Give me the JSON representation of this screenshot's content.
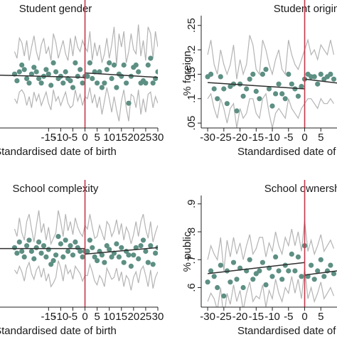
{
  "colors": {
    "dot": "#5d8f83",
    "band": "#b4b4b4",
    "fit": "#2f2f2f",
    "cutoff": "#c4374b"
  },
  "chart_data": [
    {
      "id": "gender",
      "type": "scatter",
      "title": "Student gender",
      "xlabel": "Standardised date of birth",
      "ylabel": "",
      "xlim": [
        -35,
        30
      ],
      "ylim": [
        0.3,
        0.8
      ],
      "x_ticks": [
        -15,
        -10,
        -5,
        0,
        5,
        10,
        15,
        20,
        25,
        30
      ],
      "x_tick_labels": [
        "-15",
        "-10",
        "-5",
        "0",
        "5",
        "10",
        "15",
        "20",
        "25",
        "30"
      ],
      "y_ticks": [],
      "y_tick_labels": [],
      "cutoff_x": 0,
      "x": [
        -29,
        -28,
        -27,
        -26,
        -25,
        -24,
        -23,
        -22,
        -21,
        -20,
        -19,
        -18,
        -17,
        -16,
        -15,
        -14,
        -13,
        -12,
        -11,
        -10,
        -9,
        -8,
        -7,
        -6,
        -5,
        -4,
        -3,
        -2,
        -1,
        0,
        1,
        2,
        3,
        4,
        5,
        6,
        7,
        8,
        9,
        10,
        11,
        12,
        13,
        14,
        15,
        16,
        17,
        18,
        19,
        20,
        21,
        22,
        23,
        24,
        25,
        26,
        27,
        28,
        29,
        30
      ],
      "values": [
        0.54,
        0.51,
        0.55,
        0.58,
        0.56,
        0.52,
        0.5,
        0.54,
        0.57,
        0.55,
        0.52,
        0.5,
        0.53,
        0.56,
        0.54,
        0.49,
        0.59,
        0.55,
        0.52,
        0.53,
        0.5,
        0.55,
        0.52,
        0.51,
        0.48,
        0.59,
        0.53,
        0.56,
        0.5,
        0.53,
        0.53,
        0.59,
        0.52,
        0.55,
        0.5,
        0.55,
        0.48,
        0.5,
        0.56,
        0.59,
        0.52,
        0.58,
        0.48,
        0.54,
        0.53,
        0.58,
        0.5,
        0.41,
        0.53,
        0.57,
        0.58,
        0.55,
        0.5,
        0.51,
        0.5,
        0.58,
        0.61,
        0.5,
        0.52,
        0.55
      ],
      "upper": [
        0.64,
        0.61,
        0.7,
        0.68,
        0.62,
        0.69,
        0.6,
        0.66,
        0.71,
        0.64,
        0.6,
        0.67,
        0.7,
        0.63,
        0.66,
        0.6,
        0.72,
        0.68,
        0.61,
        0.65,
        0.69,
        0.63,
        0.6,
        0.7,
        0.62,
        0.71,
        0.66,
        0.64,
        0.69,
        0.66,
        0.64,
        0.73,
        0.6,
        0.68,
        0.62,
        0.67,
        0.59,
        0.63,
        0.7,
        0.61,
        0.67,
        0.75,
        0.58,
        0.72,
        0.66,
        0.73,
        0.59,
        0.64,
        0.72,
        0.65,
        0.63,
        0.76,
        0.62,
        0.69,
        0.6,
        0.75,
        0.72,
        0.61,
        0.73,
        0.66
      ],
      "lower": [
        0.43,
        0.41,
        0.46,
        0.47,
        0.45,
        0.4,
        0.44,
        0.39,
        0.46,
        0.42,
        0.45,
        0.4,
        0.43,
        0.46,
        0.41,
        0.38,
        0.47,
        0.42,
        0.44,
        0.4,
        0.43,
        0.46,
        0.41,
        0.39,
        0.4,
        0.47,
        0.42,
        0.45,
        0.4,
        0.44,
        0.43,
        0.48,
        0.41,
        0.45,
        0.39,
        0.44,
        0.36,
        0.42,
        0.48,
        0.43,
        0.37,
        0.44,
        0.38,
        0.33,
        0.42,
        0.47,
        0.39,
        0.33,
        0.45,
        0.44,
        0.39,
        0.47,
        0.36,
        0.43,
        0.37,
        0.45,
        0.46,
        0.39,
        0.44,
        0.41
      ],
      "fit_left": [
        [
          -35,
          0.535
        ],
        [
          0,
          0.525
        ]
      ],
      "fit_right": [
        [
          0,
          0.545
        ],
        [
          30,
          0.525
        ]
      ]
    },
    {
      "id": "origin",
      "type": "scatter",
      "title": "Student origin",
      "xlabel": "Standardised date of birth",
      "ylabel": "% foreign",
      "xlim": [
        -32,
        10
      ],
      "ylim": [
        0.04,
        0.27
      ],
      "x_ticks": [
        -30,
        -25,
        -20,
        -15,
        -10,
        -5,
        0,
        5
      ],
      "x_tick_labels": [
        "-30",
        "-25",
        "-20",
        "-15",
        "-10",
        "-5",
        "0",
        "5"
      ],
      "y_ticks": [
        0.05,
        0.1,
        0.15,
        0.2,
        0.25
      ],
      "y_tick_labels": [
        ".05",
        ".1",
        ".15",
        ".2",
        ".25"
      ],
      "cutoff_x": 0,
      "x": [
        -30,
        -29,
        -28,
        -27,
        -26,
        -25,
        -24,
        -23,
        -22,
        -21,
        -20,
        -19,
        -18,
        -17,
        -16,
        -15,
        -14,
        -13,
        -12,
        -11,
        -10,
        -9,
        -8,
        -7,
        -6,
        -5,
        -4,
        -3,
        -2,
        -1,
        0,
        1,
        2,
        3,
        4,
        5,
        6,
        7,
        8,
        9
      ],
      "values": [
        0.145,
        0.15,
        0.12,
        0.1,
        0.145,
        0.12,
        0.09,
        0.125,
        0.13,
        0.075,
        0.13,
        0.105,
        0.12,
        0.14,
        0.15,
        0.115,
        0.1,
        0.15,
        0.16,
        0.12,
        0.085,
        0.11,
        0.13,
        0.11,
        0.1,
        0.15,
        0.13,
        0.12,
        0.105,
        0.125,
        0.14,
        0.15,
        0.145,
        0.145,
        0.13,
        0.15,
        0.14,
        0.145,
        0.15,
        0.14
      ],
      "upper": [
        0.19,
        0.22,
        0.17,
        0.15,
        0.2,
        0.17,
        0.15,
        0.17,
        0.21,
        0.14,
        0.18,
        0.15,
        0.17,
        0.23,
        0.21,
        0.16,
        0.15,
        0.22,
        0.2,
        0.17,
        0.15,
        0.18,
        0.2,
        0.16,
        0.15,
        0.22,
        0.19,
        0.17,
        0.16,
        0.18,
        0.2,
        0.22,
        0.19,
        0.2,
        0.18,
        0.21,
        0.2,
        0.19,
        0.22,
        0.19
      ],
      "lower": [
        0.1,
        0.11,
        0.08,
        0.06,
        0.1,
        0.08,
        0.05,
        0.08,
        0.09,
        0.04,
        0.08,
        0.06,
        0.07,
        0.1,
        0.1,
        0.07,
        0.06,
        0.1,
        0.11,
        0.07,
        0.04,
        0.07,
        0.08,
        0.07,
        0.06,
        0.1,
        0.08,
        0.07,
        0.06,
        0.08,
        0.09,
        0.1,
        0.1,
        0.09,
        0.08,
        0.1,
        0.09,
        0.09,
        0.1,
        0.09
      ],
      "fit_left": [
        [
          -30,
          0.133
        ],
        [
          0,
          0.12
        ]
      ],
      "fit_right": [
        [
          0,
          0.14
        ],
        [
          10,
          0.132
        ]
      ]
    },
    {
      "id": "complexity",
      "type": "scatter",
      "title": "School complexity",
      "xlabel": "Standardised date of birth",
      "ylabel": "",
      "xlim": [
        -35,
        30
      ],
      "ylim": [
        0.2,
        0.8
      ],
      "x_ticks": [
        -15,
        -10,
        -5,
        0,
        5,
        10,
        15,
        20,
        25,
        30
      ],
      "x_tick_labels": [
        "-15",
        "-10",
        "-5",
        "0",
        "5",
        "10",
        "15",
        "20",
        "25",
        "30"
      ],
      "y_ticks": [],
      "y_tick_labels": [],
      "cutoff_x": 0,
      "x": [
        -29,
        -28,
        -27,
        -26,
        -25,
        -24,
        -23,
        -22,
        -21,
        -20,
        -19,
        -18,
        -17,
        -16,
        -15,
        -14,
        -13,
        -12,
        -11,
        -10,
        -9,
        -8,
        -7,
        -6,
        -5,
        -4,
        -3,
        -2,
        -1,
        0,
        1,
        2,
        3,
        4,
        5,
        6,
        7,
        8,
        9,
        10,
        11,
        12,
        13,
        14,
        15,
        16,
        17,
        18,
        19,
        20,
        21,
        22,
        23,
        24,
        25,
        26,
        27,
        28,
        29,
        30
      ],
      "values": [
        0.52,
        0.49,
        0.55,
        0.5,
        0.47,
        0.53,
        0.56,
        0.5,
        0.46,
        0.52,
        0.55,
        0.49,
        0.53,
        0.47,
        0.51,
        0.43,
        0.45,
        0.48,
        0.58,
        0.54,
        0.47,
        0.56,
        0.5,
        0.53,
        0.48,
        0.55,
        0.52,
        0.5,
        0.47,
        0.5,
        0.5,
        0.56,
        0.52,
        0.47,
        0.45,
        0.5,
        0.48,
        0.44,
        0.53,
        0.51,
        0.47,
        0.49,
        0.54,
        0.47,
        0.52,
        0.44,
        0.5,
        0.48,
        0.42,
        0.48,
        0.52,
        0.46,
        0.53,
        0.56,
        0.5,
        0.44,
        0.53,
        0.43,
        0.49,
        0.52
      ],
      "upper": [
        0.62,
        0.58,
        0.68,
        0.6,
        0.56,
        0.66,
        0.7,
        0.62,
        0.55,
        0.64,
        0.72,
        0.6,
        0.65,
        0.56,
        0.63,
        0.54,
        0.57,
        0.6,
        0.72,
        0.66,
        0.58,
        0.7,
        0.61,
        0.66,
        0.59,
        0.68,
        0.63,
        0.6,
        0.58,
        0.64,
        0.62,
        0.7,
        0.63,
        0.57,
        0.58,
        0.64,
        0.6,
        0.56,
        0.66,
        0.64,
        0.58,
        0.61,
        0.67,
        0.59,
        0.65,
        0.56,
        0.63,
        0.6,
        0.54,
        0.59,
        0.66,
        0.58,
        0.66,
        0.7,
        0.62,
        0.57,
        0.66,
        0.55,
        0.6,
        0.64
      ],
      "lower": [
        0.4,
        0.38,
        0.42,
        0.39,
        0.34,
        0.41,
        0.44,
        0.38,
        0.35,
        0.4,
        0.42,
        0.36,
        0.41,
        0.34,
        0.38,
        0.31,
        0.33,
        0.36,
        0.45,
        0.41,
        0.34,
        0.43,
        0.38,
        0.4,
        0.35,
        0.42,
        0.4,
        0.38,
        0.34,
        0.37,
        0.37,
        0.43,
        0.39,
        0.34,
        0.32,
        0.37,
        0.35,
        0.31,
        0.41,
        0.38,
        0.35,
        0.36,
        0.41,
        0.34,
        0.39,
        0.31,
        0.37,
        0.35,
        0.29,
        0.36,
        0.39,
        0.33,
        0.4,
        0.42,
        0.37,
        0.31,
        0.4,
        0.3,
        0.36,
        0.39
      ],
      "fit_left": [
        [
          -35,
          0.515
        ],
        [
          0,
          0.515
        ]
      ],
      "fit_right": [
        [
          0,
          0.485
        ],
        [
          30,
          0.52
        ]
      ]
    },
    {
      "id": "ownership",
      "type": "scatter",
      "title": "School ownership",
      "xlabel": "Standardised date of birth",
      "ylabel": "% public",
      "xlim": [
        -32,
        10
      ],
      "ylim": [
        0.53,
        0.93
      ],
      "x_ticks": [
        -30,
        -25,
        -20,
        -15,
        -10,
        -5,
        0,
        5
      ],
      "x_tick_labels": [
        "-30",
        "-25",
        "-20",
        "-15",
        "-10",
        "-5",
        "0",
        "5"
      ],
      "y_ticks": [
        0.6,
        0.7,
        0.8,
        0.9
      ],
      "y_tick_labels": [
        ".6",
        ".7",
        ".8",
        ".9"
      ],
      "cutoff_x": 0,
      "x": [
        -30,
        -29,
        -28,
        -27,
        -26,
        -25,
        -24,
        -23,
        -22,
        -21,
        -20,
        -19,
        -18,
        -17,
        -16,
        -15,
        -14,
        -13,
        -12,
        -11,
        -10,
        -9,
        -8,
        -7,
        -6,
        -5,
        -4,
        -3,
        -2,
        -1,
        0,
        1,
        2,
        3,
        4,
        5,
        6,
        7,
        8,
        9
      ],
      "values": [
        0.62,
        0.66,
        0.64,
        0.6,
        0.68,
        0.57,
        0.66,
        0.62,
        0.69,
        0.63,
        0.67,
        0.6,
        0.66,
        0.7,
        0.63,
        0.65,
        0.66,
        0.69,
        0.61,
        0.67,
        0.64,
        0.71,
        0.66,
        0.63,
        0.68,
        0.66,
        0.72,
        0.66,
        0.71,
        0.64,
        0.75,
        0.64,
        0.68,
        0.63,
        0.66,
        0.7,
        0.64,
        0.66,
        0.68,
        0.65
      ],
      "upper": [
        0.7,
        0.75,
        0.72,
        0.7,
        0.78,
        0.66,
        0.77,
        0.71,
        0.78,
        0.72,
        0.76,
        0.7,
        0.75,
        0.79,
        0.72,
        0.74,
        0.78,
        0.78,
        0.71,
        0.76,
        0.73,
        0.8,
        0.75,
        0.72,
        0.78,
        0.75,
        0.81,
        0.75,
        0.8,
        0.73,
        0.84,
        0.73,
        0.77,
        0.72,
        0.75,
        0.79,
        0.73,
        0.75,
        0.77,
        0.74
      ],
      "lower": [
        0.55,
        0.58,
        0.56,
        0.52,
        0.6,
        0.49,
        0.58,
        0.54,
        0.61,
        0.55,
        0.59,
        0.52,
        0.58,
        0.62,
        0.55,
        0.57,
        0.56,
        0.61,
        0.53,
        0.59,
        0.56,
        0.63,
        0.58,
        0.55,
        0.6,
        0.58,
        0.64,
        0.58,
        0.63,
        0.56,
        0.67,
        0.56,
        0.6,
        0.55,
        0.58,
        0.62,
        0.56,
        0.58,
        0.6,
        0.57
      ],
      "fit_left": [
        [
          -30,
          0.65
        ],
        [
          0,
          0.69
        ]
      ],
      "fit_right": [
        [
          0,
          0.645
        ],
        [
          10,
          0.66
        ]
      ]
    }
  ]
}
